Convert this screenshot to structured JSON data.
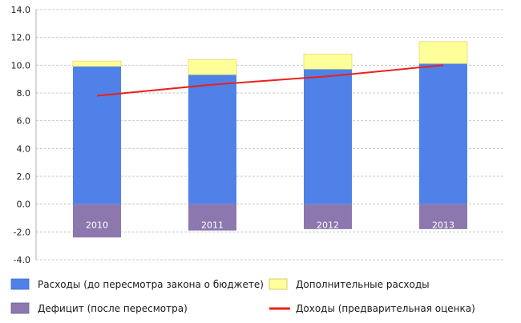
{
  "chart_data": {
    "type": "bar",
    "categories": [
      "2010",
      "2011",
      "2012",
      "2013"
    ],
    "series": [
      {
        "name": "Расходы (до пересмотра закона о бюджете)",
        "kind": "bar",
        "color": "#4f81e8",
        "values": [
          9.9,
          9.3,
          9.7,
          10.1
        ]
      },
      {
        "name": "Дополнительные расходы",
        "kind": "bar-stacked",
        "color": "#ffff99",
        "values": [
          0.4,
          1.1,
          1.1,
          1.6
        ]
      },
      {
        "name": "Дефицит (после пересмотра)",
        "kind": "bar-negative",
        "color": "#8c78ae",
        "values": [
          -2.4,
          -1.9,
          -1.8,
          -1.8
        ]
      },
      {
        "name": "Доходы (предварительная оценка)",
        "kind": "line",
        "color": "#e8221b",
        "values": [
          7.8,
          8.6,
          9.2,
          10.0
        ]
      }
    ],
    "yticks": [
      "14.0",
      "12.0",
      "10.0",
      "8.0",
      "6.0",
      "4.0",
      "2.0",
      "0.0",
      "-2.0",
      "-4.0"
    ],
    "ylim": [
      -4,
      14
    ],
    "grid": true,
    "legend_position": "bottom"
  }
}
